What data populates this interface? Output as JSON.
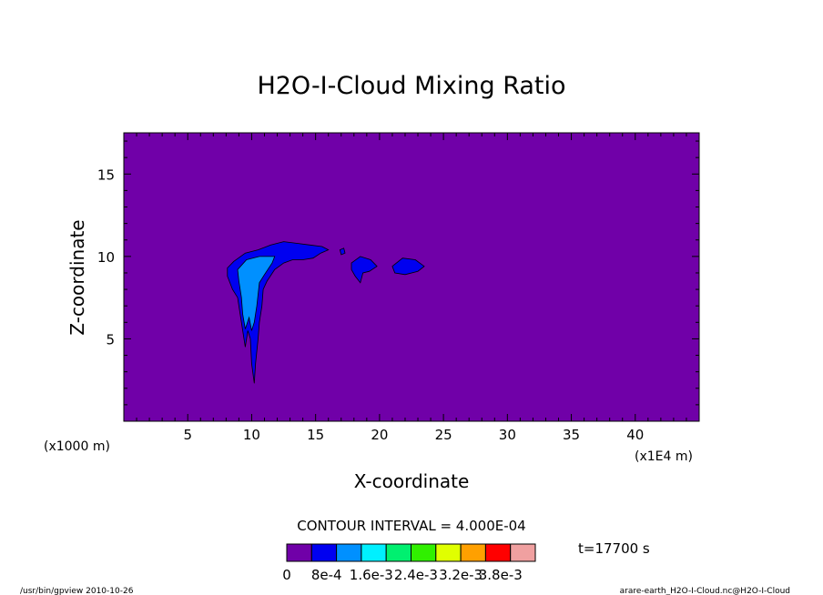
{
  "chart_data": {
    "type": "heatmap",
    "title": "H2O-I-Cloud Mixing Ratio",
    "xlabel": "X-coordinate",
    "ylabel": "Z-coordinate",
    "x_unit_left": "(x1000 m)",
    "x_unit_right": "(x1E4 m)",
    "xlim": [
      0,
      45
    ],
    "ylim": [
      0,
      17.5
    ],
    "x_ticks": [
      {
        "value": 5,
        "label": "5"
      },
      {
        "value": 10,
        "label": "10"
      },
      {
        "value": 15,
        "label": "15"
      },
      {
        "value": 20,
        "label": "20"
      },
      {
        "value": 25,
        "label": "25"
      },
      {
        "value": 30,
        "label": "30"
      },
      {
        "value": 35,
        "label": "35"
      },
      {
        "value": 40,
        "label": "40"
      }
    ],
    "y_ticks": [
      {
        "value": 5,
        "label": "5"
      },
      {
        "value": 10,
        "label": "10"
      },
      {
        "value": 15,
        "label": "15"
      }
    ],
    "background_color": "#7000A8",
    "regions": [
      {
        "level": 1,
        "color": "#0000F0",
        "points": [
          [
            8.6,
            9.7
          ],
          [
            9.5,
            10.2
          ],
          [
            10.5,
            10.4
          ],
          [
            11.5,
            10.7
          ],
          [
            12.5,
            10.9
          ],
          [
            13.5,
            10.8
          ],
          [
            14.5,
            10.7
          ],
          [
            15.5,
            10.6
          ],
          [
            16.0,
            10.4
          ],
          [
            15.4,
            10.2
          ],
          [
            14.8,
            9.9
          ],
          [
            14.0,
            9.8
          ],
          [
            13.2,
            9.8
          ],
          [
            12.5,
            9.6
          ],
          [
            11.8,
            9.2
          ],
          [
            11.2,
            8.5
          ],
          [
            10.9,
            8.0
          ],
          [
            10.8,
            7.0
          ],
          [
            10.6,
            6.0
          ],
          [
            10.5,
            5.0
          ],
          [
            10.3,
            3.5
          ],
          [
            10.2,
            2.3
          ],
          [
            10.0,
            3.5
          ],
          [
            9.9,
            5.0
          ],
          [
            9.7,
            5.5
          ],
          [
            9.5,
            4.5
          ],
          [
            9.3,
            5.5
          ],
          [
            9.1,
            6.5
          ],
          [
            8.9,
            7.5
          ],
          [
            8.5,
            8.0
          ],
          [
            8.1,
            8.8
          ],
          [
            8.1,
            9.3
          ]
        ]
      },
      {
        "level": 1,
        "color": "#0000F0",
        "points": [
          [
            17.8,
            9.6
          ],
          [
            18.5,
            10.0
          ],
          [
            19.3,
            9.8
          ],
          [
            19.8,
            9.4
          ],
          [
            19.2,
            9.1
          ],
          [
            18.7,
            9.0
          ],
          [
            18.5,
            8.4
          ],
          [
            18.1,
            8.8
          ],
          [
            17.8,
            9.2
          ]
        ]
      },
      {
        "level": 1,
        "color": "#0000F0",
        "points": [
          [
            21.0,
            9.4
          ],
          [
            21.8,
            9.9
          ],
          [
            22.8,
            9.8
          ],
          [
            23.5,
            9.4
          ],
          [
            23.0,
            9.1
          ],
          [
            22.0,
            8.9
          ],
          [
            21.2,
            9.0
          ]
        ]
      },
      {
        "level": 1,
        "color": "#0000F0",
        "points": [
          [
            16.9,
            10.4
          ],
          [
            17.2,
            10.5
          ],
          [
            17.3,
            10.2
          ],
          [
            17.0,
            10.1
          ]
        ]
      },
      {
        "level": 2,
        "color": "#0090FF",
        "points": [
          [
            8.9,
            9.2
          ],
          [
            9.6,
            9.8
          ],
          [
            10.6,
            10.0
          ],
          [
            11.8,
            10.0
          ],
          [
            11.6,
            9.6
          ],
          [
            11.0,
            8.9
          ],
          [
            10.6,
            8.4
          ],
          [
            10.4,
            7.0
          ],
          [
            10.2,
            6.0
          ],
          [
            10.0,
            5.5
          ],
          [
            9.8,
            6.3
          ],
          [
            9.5,
            5.6
          ],
          [
            9.3,
            6.5
          ],
          [
            9.2,
            7.5
          ],
          [
            9.0,
            8.5
          ]
        ]
      }
    ],
    "contour_interval_label": "CONTOUR INTERVAL = 4.000E-04",
    "time_label": "t=17700 s",
    "colorbar": {
      "colors": [
        "#7000A8",
        "#0000F0",
        "#0090FF",
        "#00F0FF",
        "#00F070",
        "#30F000",
        "#E0FF00",
        "#FFA000",
        "#FF0000",
        "#F0A0A0"
      ],
      "labels": [
        {
          "index": 0,
          "text": "0"
        },
        {
          "index": 1.6,
          "text": "8e-4"
        },
        {
          "index": 3.4,
          "text": "1.6e-3"
        },
        {
          "index": 5.2,
          "text": "2.4e-3"
        },
        {
          "index": 7.0,
          "text": "3.2e-3"
        },
        {
          "index": 8.6,
          "text": "3.8e-3"
        }
      ]
    }
  },
  "footer": {
    "left": "/usr/bin/gpview  2010-10-26",
    "right": "arare-earth_H2O-I-Cloud.nc@H2O-I-Cloud"
  }
}
